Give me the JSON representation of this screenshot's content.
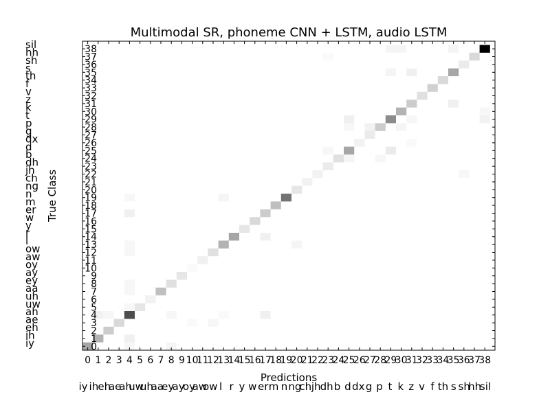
{
  "chart_data": {
    "type": "heatmap",
    "title": "Multimodal SR, phoneme CNN + LSTM, audio LSTM",
    "xlabel": "Predictions",
    "ylabel": "True Class",
    "n_classes": 39,
    "colormap": "white-to-black",
    "x_ticks": [
      "0",
      "1",
      "2",
      "3",
      "4",
      "5",
      "6",
      "7",
      "8",
      "9",
      "10",
      "11",
      "12",
      "13",
      "14",
      "15",
      "16",
      "17",
      "18",
      "19",
      "20",
      "21",
      "22",
      "23",
      "24",
      "25",
      "26",
      "27",
      "28",
      "29",
      "30",
      "31",
      "32",
      "33",
      "34",
      "35",
      "36",
      "37",
      "38"
    ],
    "y_ticks": [
      "0",
      "1",
      "2",
      "3",
      "4",
      "5",
      "6",
      "7",
      "8",
      "9",
      "10",
      "11",
      "12",
      "13",
      "14",
      "15",
      "16",
      "17",
      "18",
      "19",
      "20",
      "21",
      "22",
      "23",
      "24",
      "25",
      "26",
      "27",
      "28",
      "29",
      "30",
      "31",
      "32",
      "33",
      "34",
      "35",
      "36",
      "37",
      "38"
    ],
    "phoneme_labels": [
      "iy",
      "ih",
      "eh",
      "ae",
      "ah",
      "uw",
      "uh",
      "aa",
      "ey",
      "ay",
      "oy",
      "aw",
      "ow",
      "l",
      "r",
      "y",
      "w",
      "er",
      "m",
      "n",
      "ng",
      "ch",
      "jh",
      "dh",
      "b",
      "d",
      "dx",
      "g",
      "p",
      "t",
      "k",
      "z",
      "v",
      "f",
      "th",
      "s",
      "sh",
      "hh",
      "sil"
    ],
    "diagonal": [
      0.35,
      0.3,
      0.2,
      0.15,
      0.7,
      0.1,
      0.05,
      0.25,
      0.12,
      0.1,
      0.02,
      0.06,
      0.12,
      0.3,
      0.35,
      0.1,
      0.15,
      0.2,
      0.25,
      0.55,
      0.1,
      0.05,
      0.05,
      0.08,
      0.12,
      0.35,
      0.05,
      0.08,
      0.2,
      0.45,
      0.3,
      0.2,
      0.12,
      0.18,
      0.15,
      0.35,
      0.08,
      0.15,
      1.0
    ],
    "off_diagonal": [
      {
        "true": 4,
        "pred": 1,
        "value": 0.05
      },
      {
        "true": 4,
        "pred": 2,
        "value": 0.03
      },
      {
        "true": 4,
        "pred": 8,
        "value": 0.03
      },
      {
        "true": 4,
        "pred": 17,
        "value": 0.06
      },
      {
        "true": 4,
        "pred": 13,
        "value": 0.02
      },
      {
        "true": 5,
        "pred": 4,
        "value": 0.03
      },
      {
        "true": 3,
        "pred": 10,
        "value": 0.02
      },
      {
        "true": 3,
        "pred": 12,
        "value": 0.03
      },
      {
        "true": 1,
        "pred": 4,
        "value": 0.06
      },
      {
        "true": 0,
        "pred": 8,
        "value": 0.04
      },
      {
        "true": 0,
        "pred": 4,
        "value": 0.03
      },
      {
        "true": 17,
        "pred": 4,
        "value": 0.06
      },
      {
        "true": 14,
        "pred": 17,
        "value": 0.06
      },
      {
        "true": 13,
        "pred": 4,
        "value": 0.03
      },
      {
        "true": 13,
        "pred": 20,
        "value": 0.04
      },
      {
        "true": 19,
        "pred": 13,
        "value": 0.04
      },
      {
        "true": 19,
        "pred": 4,
        "value": 0.03
      },
      {
        "true": 25,
        "pred": 23,
        "value": 0.03
      },
      {
        "true": 25,
        "pred": 29,
        "value": 0.08
      },
      {
        "true": 24,
        "pred": 25,
        "value": 0.04
      },
      {
        "true": 24,
        "pred": 28,
        "value": 0.03
      },
      {
        "true": 29,
        "pred": 25,
        "value": 0.06
      },
      {
        "true": 29,
        "pred": 31,
        "value": 0.03
      },
      {
        "true": 28,
        "pred": 25,
        "value": 0.03
      },
      {
        "true": 28,
        "pred": 27,
        "value": 0.05
      },
      {
        "true": 28,
        "pred": 30,
        "value": 0.04
      },
      {
        "true": 31,
        "pred": 35,
        "value": 0.06
      },
      {
        "true": 35,
        "pred": 29,
        "value": 0.04
      },
      {
        "true": 35,
        "pred": 31,
        "value": 0.06
      },
      {
        "true": 38,
        "pred": 29,
        "value": 0.04
      },
      {
        "true": 38,
        "pred": 30,
        "value": 0.04
      },
      {
        "true": 38,
        "pred": 35,
        "value": 0.04
      },
      {
        "true": 37,
        "pred": 23,
        "value": 0.02
      },
      {
        "true": 29,
        "pred": 38,
        "value": 0.05
      },
      {
        "true": 30,
        "pred": 38,
        "value": 0.03
      },
      {
        "true": 22,
        "pred": 36,
        "value": 0.03
      },
      {
        "true": 26,
        "pred": 31,
        "value": 0.02
      },
      {
        "true": 12,
        "pred": 4,
        "value": 0.03
      },
      {
        "true": 8,
        "pred": 4,
        "value": 0.03
      },
      {
        "true": 7,
        "pred": 4,
        "value": 0.03
      }
    ]
  }
}
